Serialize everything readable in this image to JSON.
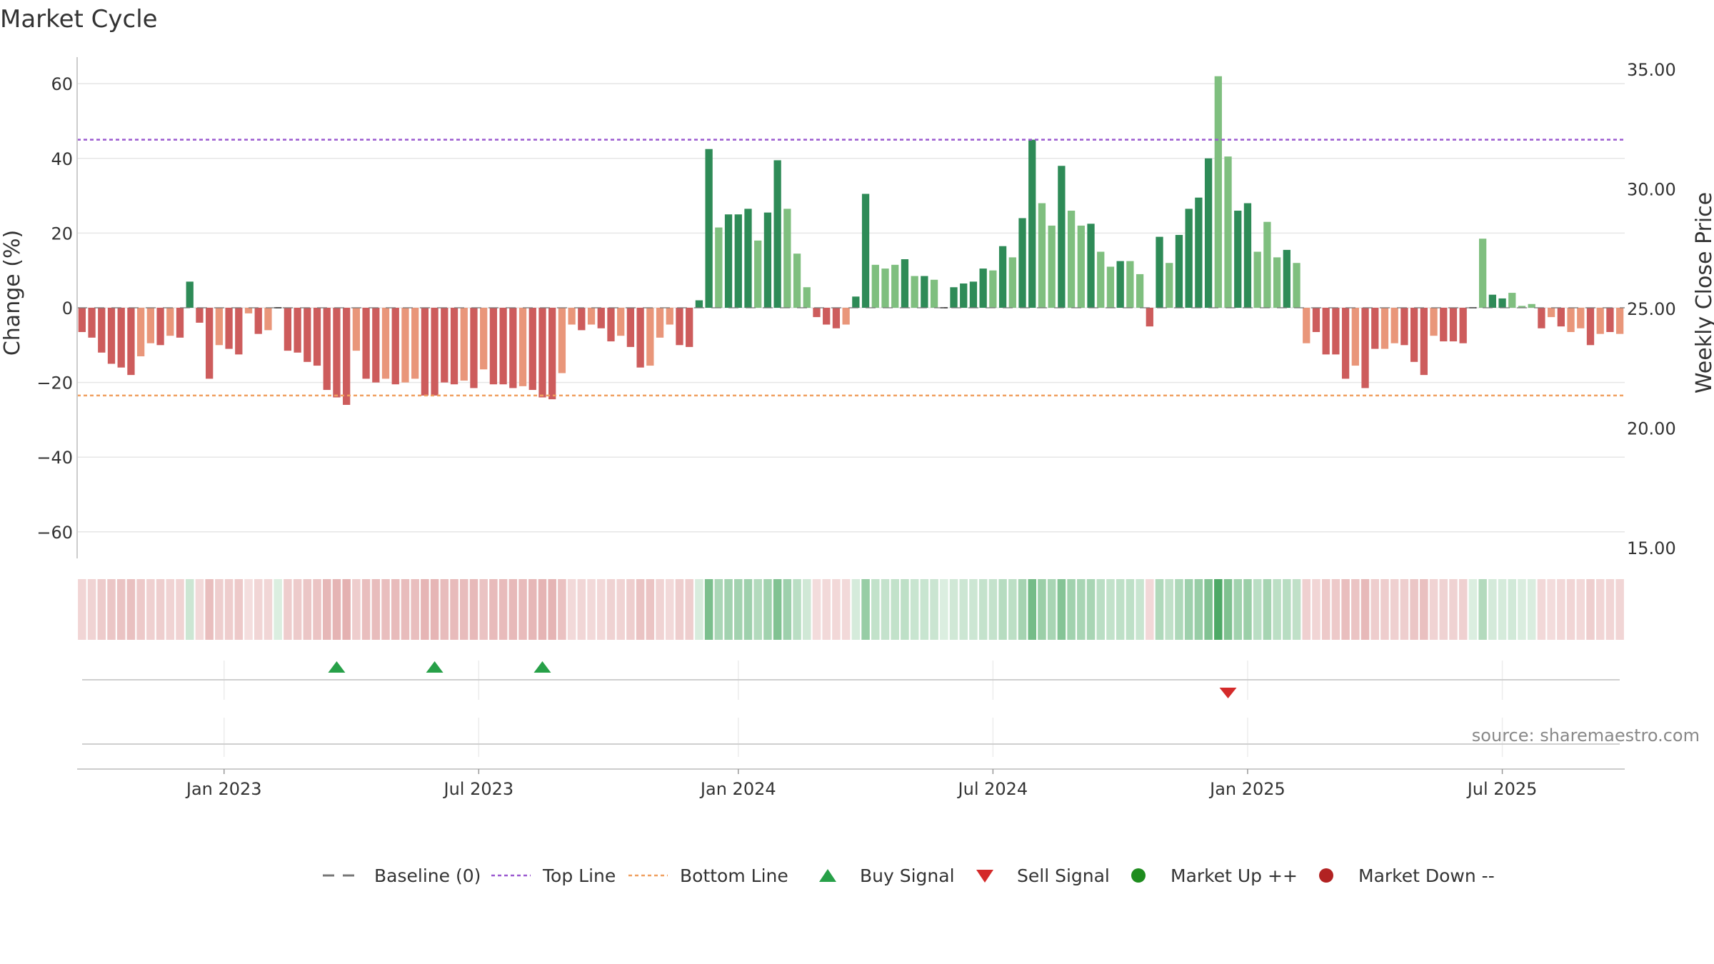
{
  "title": "Market Cycle",
  "source": "source: sharemaestro.com",
  "chart_data": {
    "type": "bar",
    "title": "Market Cycle",
    "ylabel": "Change (%)",
    "ylabel_right": "Weekly Close Price",
    "ylim": [
      -66,
      67
    ],
    "y_ticks": [
      60,
      40,
      20,
      0,
      -20,
      -40,
      -60
    ],
    "y_tick_labels": [
      "60",
      "40",
      "20",
      "0",
      "−20",
      "−40",
      "−60"
    ],
    "y2_ticks": [
      35,
      30,
      25,
      20,
      15
    ],
    "y2_tick_labels": [
      "35.00",
      "30.00",
      "25.00",
      "20.00",
      "15.00"
    ],
    "x_tick_labels": [
      "Jan 2023",
      "Jul 2023",
      "Jan 2024",
      "Jul 2024",
      "Jan 2025",
      "Jul 2025"
    ],
    "x_tick_weeks": [
      15,
      41,
      67.5,
      93.5,
      119.5,
      145.5
    ],
    "top_line": 45,
    "bottom_line": -23.5,
    "grid": true,
    "legend_position": "bottom-center",
    "colors": {
      "strong_up": "#2e8b57",
      "mild_up": "#7fbf7f",
      "strong_down": "#cd5c5c",
      "mild_down": "#e9967a",
      "top_line": "#9b59d0",
      "bottom_line": "#f0a060",
      "buy": "#27a048",
      "sell": "#d42a2a",
      "market_up": "#1e8c1e",
      "market_down": "#b22222"
    },
    "values": [
      -6.5,
      -8,
      -12,
      -15,
      -16,
      -18,
      -13,
      -9.5,
      -10,
      -7.5,
      -8,
      7,
      -4,
      -19,
      -10,
      -11,
      -12.5,
      -1.5,
      -7,
      -6,
      0,
      -11.5,
      -12,
      -14.5,
      -15.5,
      -22,
      -24,
      -26,
      -11.5,
      -19,
      -20,
      -19,
      -20.5,
      -20,
      -19,
      -23.5,
      -23.5,
      -20,
      -20.5,
      -19.5,
      -21.5,
      -16.5,
      -20.5,
      -20.5,
      -21.5,
      -21,
      -22,
      -24,
      -24.5,
      -17.5,
      -4.5,
      -6,
      -4.5,
      -5.5,
      -9,
      -7.5,
      -10.5,
      -16,
      -15.5,
      -8,
      -4.5,
      -10,
      -10.5,
      2,
      42.5,
      21.5,
      25,
      25,
      26.5,
      18,
      25.5,
      39.5,
      26.5,
      14.5,
      5.5,
      -2.5,
      -4.5,
      -5.5,
      -4.5,
      3,
      30.5,
      11.5,
      10.5,
      11.5,
      13,
      8.5,
      8.5,
      7.5,
      0,
      5.5,
      6.5,
      7,
      10.5,
      10,
      16.5,
      13.5,
      24,
      45,
      28,
      22,
      38,
      26,
      22,
      22.5,
      15,
      11,
      12.5,
      12.5,
      9,
      -5,
      19,
      12,
      19.5,
      26.5,
      29.5,
      40,
      62,
      40.5,
      26,
      28,
      15,
      23,
      13.5,
      15.5,
      12,
      -9.5,
      -6.5,
      -12.5,
      -12.5,
      -19,
      -15.5,
      -21.5,
      -11,
      -11,
      -9.5,
      -10,
      -14.5,
      -18,
      -7.5,
      -9,
      -9,
      -9.5,
      0,
      18.5,
      3.5,
      2.5,
      4,
      0.5,
      1,
      -5.5,
      -2.5,
      -5,
      -6.5,
      -5.5,
      -10,
      -7,
      -6.5,
      -7
    ],
    "shades": [
      2,
      2,
      2,
      2,
      2,
      2,
      1,
      1,
      2,
      1,
      2,
      2,
      2,
      2,
      1,
      2,
      2,
      1,
      2,
      1,
      2,
      2,
      2,
      2,
      2,
      2,
      2,
      2,
      1,
      2,
      2,
      1,
      2,
      1,
      1,
      2,
      2,
      2,
      2,
      1,
      2,
      1,
      2,
      2,
      2,
      1,
      2,
      2,
      2,
      1,
      1,
      2,
      1,
      2,
      2,
      1,
      2,
      2,
      1,
      1,
      1,
      2,
      2,
      2,
      2,
      1,
      2,
      2,
      2,
      1,
      2,
      2,
      1,
      1,
      1,
      2,
      2,
      2,
      1,
      2,
      2,
      1,
      1,
      1,
      2,
      1,
      2,
      1,
      2,
      2,
      2,
      2,
      2,
      1,
      2,
      1,
      2,
      2,
      1,
      1,
      2,
      1,
      1,
      2,
      1,
      1,
      2,
      1,
      1,
      2,
      2,
      1,
      2,
      2,
      2,
      2,
      1,
      1,
      2,
      2,
      1,
      1,
      1,
      2,
      1,
      1,
      2,
      2,
      2,
      2,
      1,
      2,
      2,
      1,
      1,
      2,
      2,
      2,
      1,
      2,
      2,
      2,
      1,
      1,
      2,
      2,
      1,
      1,
      1,
      2,
      1,
      2,
      1,
      1,
      2,
      1,
      2,
      1,
      1
    ],
    "buy_signals": [
      26,
      36,
      47
    ],
    "sell_signals": [
      117
    ],
    "legend": [
      {
        "label": "Baseline (0)",
        "symbol": "dash",
        "color": "#777777"
      },
      {
        "label": "Top Line",
        "symbol": "dot-line",
        "color": "#9b59d0"
      },
      {
        "label": "Bottom Line",
        "symbol": "dot-line",
        "color": "#f0a060"
      },
      {
        "label": "Buy Signal",
        "symbol": "triangle-up",
        "color": "#27a048"
      },
      {
        "label": "Sell Signal",
        "symbol": "triangle-down",
        "color": "#d42a2a"
      },
      {
        "label": "Market Up ++",
        "symbol": "circle",
        "color": "#1e8c1e"
      },
      {
        "label": "Market Down --",
        "symbol": "circle",
        "color": "#b22222"
      }
    ]
  }
}
